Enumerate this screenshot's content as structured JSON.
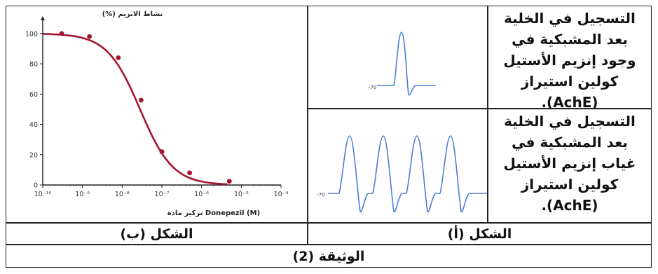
{
  "figure_a": {
    "row1_text": "التسجيل في الخلية بعد المشبكية في وجود إنزيم الأستيل كولين استيراز (AchE).",
    "row2_text": "التسجيل في الخلية بعد المشبكية في غياب إنزيم الأستيل كولين استيراز (AchE).",
    "trace1_baseline_label": "-70",
    "trace2_baseline_label": "-70",
    "trace_color": "#4a7fd4",
    "trace1_peak_count": 1,
    "trace2_peak_count": 4,
    "caption": "الشكل (أ)"
  },
  "figure_b": {
    "caption": "الشكل (ب)"
  },
  "document_caption": "الوثيقة (2)",
  "chart_data": {
    "type": "line",
    "title": "",
    "ylabel": "نشاط الانزيم (%)",
    "xlabel": "تركيز مادة Donepezil (M)",
    "x_scale": "log",
    "x_ticks": [
      "10⁻¹⁰",
      "10⁻⁹",
      "10⁻⁸",
      "10⁻⁷",
      "10⁻⁶",
      "10⁻⁵",
      "10⁻⁴"
    ],
    "y_ticks": [
      "0",
      "20",
      "40",
      "60",
      "80",
      "100"
    ],
    "ylim": [
      0,
      105
    ],
    "xlim_log10": [
      -10,
      -4
    ],
    "series_color": "#a3162f",
    "points": [
      {
        "x": 3e-10,
        "y": 100
      },
      {
        "x": 1.5e-09,
        "y": 98
      },
      {
        "x": 8e-09,
        "y": 84
      },
      {
        "x": 3e-08,
        "y": 56
      },
      {
        "x": 1e-07,
        "y": 22
      },
      {
        "x": 5e-07,
        "y": 8
      },
      {
        "x": 5e-06,
        "y": 2.5
      }
    ],
    "curve": {
      "top": 100,
      "bottom": 0,
      "log10_ic50": -7.55,
      "hill": 1.05
    },
    "grid": false,
    "legend": "none"
  }
}
